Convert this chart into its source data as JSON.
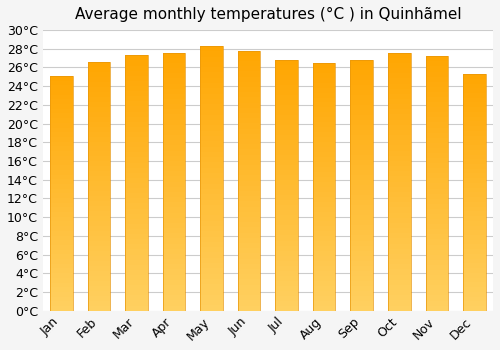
{
  "title": "Average monthly temperatures (°C ) in Quinhãmel",
  "months": [
    "Jan",
    "Feb",
    "Mar",
    "Apr",
    "May",
    "Jun",
    "Jul",
    "Aug",
    "Sep",
    "Oct",
    "Nov",
    "Dec"
  ],
  "values": [
    25.1,
    26.6,
    27.3,
    27.6,
    28.3,
    27.8,
    26.8,
    26.5,
    26.8,
    27.6,
    27.2,
    25.3
  ],
  "bar_color_top": "#FFA500",
  "bar_color_bottom": "#FFD060",
  "ylim": [
    0,
    30
  ],
  "ytick_step": 2,
  "background_color": "#f5f5f5",
  "plot_bg_color": "#ffffff",
  "grid_color": "#cccccc",
  "title_fontsize": 11,
  "tick_fontsize": 9,
  "bar_width": 0.6
}
